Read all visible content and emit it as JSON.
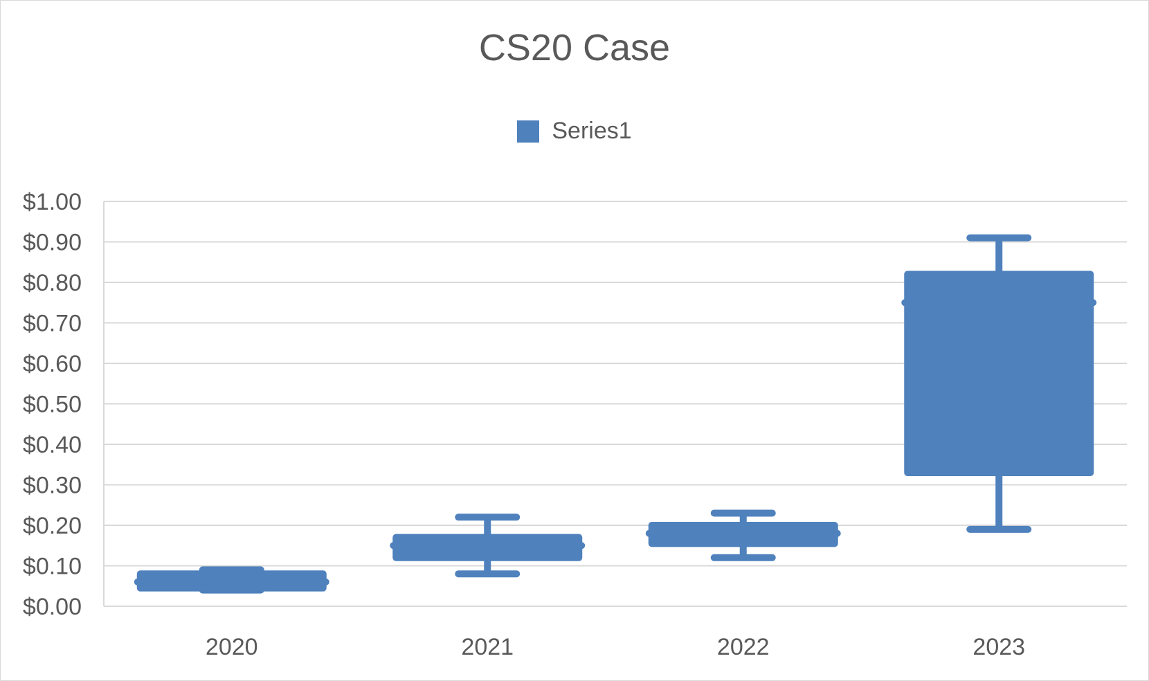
{
  "chart_data": {
    "type": "box",
    "title": "CS20 Case",
    "xlabel": "",
    "ylabel": "",
    "ylim": [
      0,
      1.0
    ],
    "ytick_step": 0.1,
    "ytick_labels": [
      "$0.00",
      "$0.10",
      "$0.20",
      "$0.30",
      "$0.40",
      "$0.50",
      "$0.60",
      "$0.70",
      "$0.80",
      "$0.90",
      "$1.00"
    ],
    "categories": [
      "2020",
      "2021",
      "2022",
      "2023"
    ],
    "legend": {
      "position": "top",
      "entries": [
        "Series1"
      ]
    },
    "grid": true,
    "color": "#4f81bd",
    "series": [
      {
        "name": "Series1",
        "boxes": [
          {
            "category": "2020",
            "min": 0.04,
            "q1": 0.045,
            "median": 0.06,
            "q3": 0.08,
            "max": 0.09
          },
          {
            "category": "2021",
            "min": 0.08,
            "q1": 0.12,
            "median": 0.15,
            "q3": 0.17,
            "max": 0.22
          },
          {
            "category": "2022",
            "min": 0.12,
            "q1": 0.155,
            "median": 0.18,
            "q3": 0.2,
            "max": 0.23
          },
          {
            "category": "2023",
            "min": 0.19,
            "q1": 0.33,
            "median": 0.75,
            "q3": 0.82,
            "max": 0.91
          }
        ]
      }
    ]
  }
}
